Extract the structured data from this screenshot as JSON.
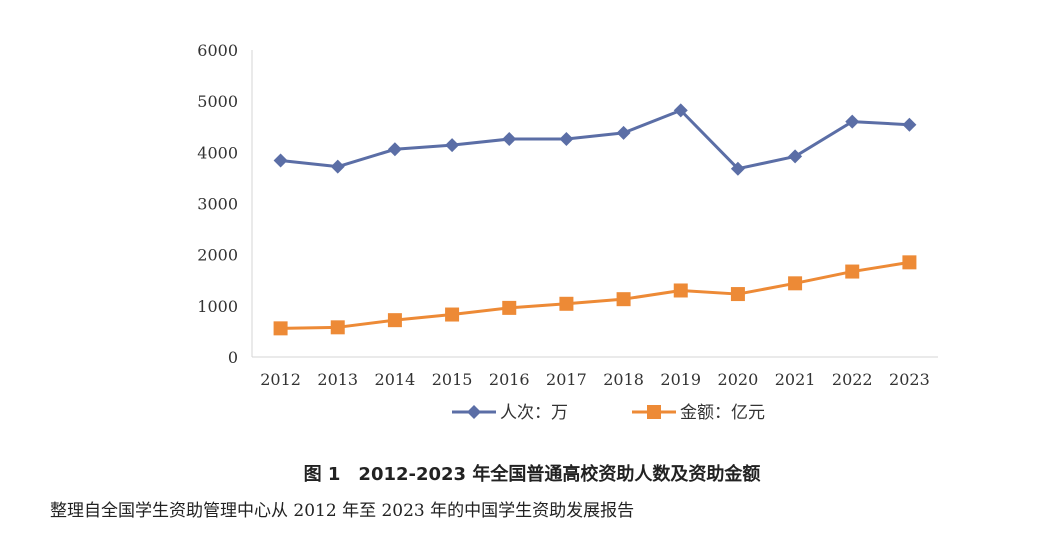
{
  "chart_data": {
    "type": "line",
    "title": "",
    "xlabel": "",
    "ylabel": "",
    "categories": [
      "2012",
      "2013",
      "2014",
      "2015",
      "2016",
      "2017",
      "2018",
      "2019",
      "2020",
      "2021",
      "2022",
      "2023"
    ],
    "ylim": [
      0,
      6000
    ],
    "yticks": [
      "0",
      "1000",
      "2000",
      "3000",
      "4000",
      "5000",
      "6000"
    ],
    "grid": false,
    "legend_position": "bottom",
    "series": [
      {
        "name": "人次：万",
        "color": "#5b6ea6",
        "marker": "diamond",
        "values": [
          3840,
          3720,
          4060,
          4140,
          4260,
          4260,
          4380,
          4820,
          3680,
          3920,
          4600,
          4540
        ]
      },
      {
        "name": "金额：亿元",
        "color": "#ed8a36",
        "marker": "square",
        "values": [
          560,
          580,
          720,
          830,
          960,
          1040,
          1130,
          1300,
          1230,
          1440,
          1670,
          1850
        ]
      }
    ]
  },
  "caption": "图 1　2012-2023 年全国普通高校资助人数及资助金额",
  "source_note": "整理自全国学生资助管理中心从 2012 年至 2023 年的中国学生资助发展报告"
}
